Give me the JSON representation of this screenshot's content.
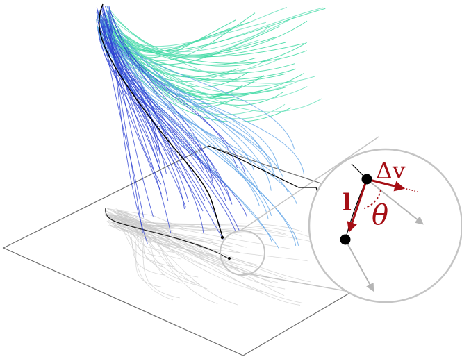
{
  "labels": {
    "delta_v": "Δv",
    "length": "l",
    "angle": "θ"
  },
  "colors": {
    "green": "#3fd9a3",
    "blue_dark": "#2b3fd1",
    "blue_light": "#5aa0e6",
    "black": "#000000",
    "shadow": "#c9c9c9",
    "plane": "#6e6e6e",
    "zoom_circle": "#c4c4c4",
    "accent_red": "#a50f15",
    "gray_arrow": "#b5b5b5"
  }
}
